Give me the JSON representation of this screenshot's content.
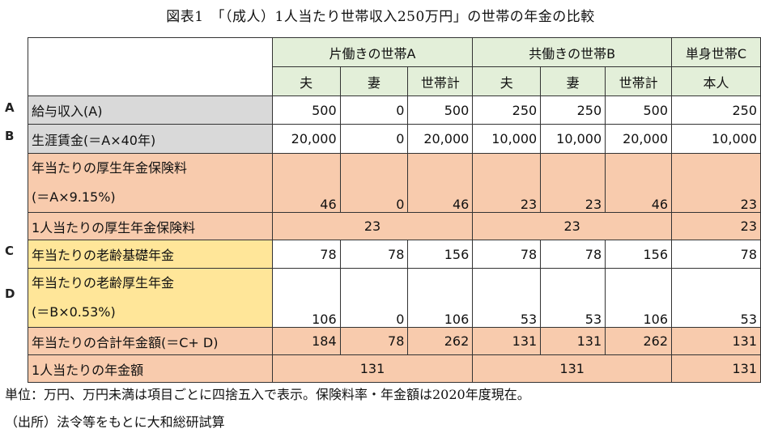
{
  "title": "図表1　「（成人）1人当たり世帯収入250万円」の世帯の年金の比較",
  "groups": {
    "a": "片働きの世帯A",
    "b": "共働きの世帯B",
    "c": "単身世帯C"
  },
  "subheaders": {
    "husband": "夫",
    "wife": "妻",
    "total": "世帯計",
    "self": "本人"
  },
  "row_letters": [
    "A",
    "B",
    "C",
    "D"
  ],
  "rows": {
    "salary": {
      "label": "給与収入(A)",
      "values": [
        "500",
        "0",
        "500",
        "250",
        "250",
        "500",
        "250"
      ]
    },
    "lifetime": {
      "label": "生涯賃金(＝A×40年)",
      "values": [
        "20,000",
        "0",
        "20,000",
        "10,000",
        "10,000",
        "20,000",
        "10,000"
      ]
    },
    "premium": {
      "label1": "年当たりの厚生年金保険料",
      "label2": "(＝A×9.15%)",
      "values": [
        "46",
        "0",
        "46",
        "23",
        "23",
        "46",
        "23"
      ]
    },
    "premium_pp": {
      "label": "1人当たりの厚生年金保険料",
      "values": [
        "23",
        "23",
        "23"
      ]
    },
    "basic": {
      "label": "年当たりの老齢基礎年金",
      "values": [
        "78",
        "78",
        "156",
        "78",
        "78",
        "156",
        "78"
      ]
    },
    "welfare": {
      "label1": "年当たりの老齢厚生年金",
      "label2": "(＝B×0.53%)",
      "values": [
        "106",
        "0",
        "106",
        "53",
        "53",
        "106",
        "53"
      ]
    },
    "total": {
      "label": "年当たりの合計年金額(＝C+ D)",
      "values": [
        "184",
        "78",
        "262",
        "131",
        "131",
        "262",
        "131"
      ]
    },
    "total_pp": {
      "label": "1人当たりの年金額",
      "values": [
        "131",
        "131",
        "131"
      ]
    }
  },
  "footnotes": {
    "unit": "単位：万円、万円未満は項目ごとに四捨五入で表示。保険料率・年金額は2020年度現在。",
    "source": "（出所）法令等をもとに大和総研試算"
  }
}
